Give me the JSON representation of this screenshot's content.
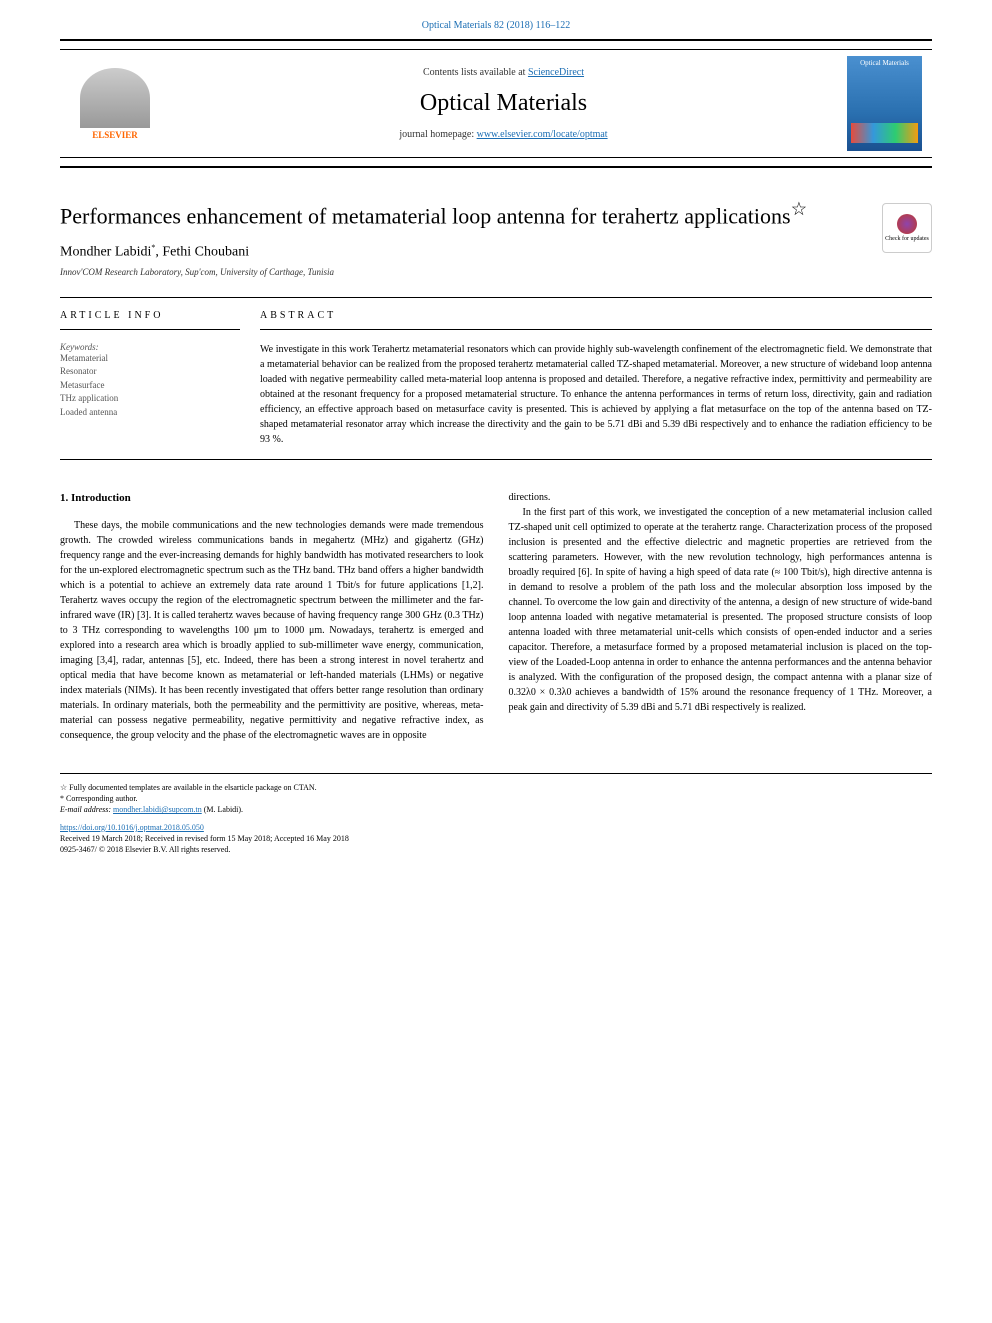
{
  "header": {
    "citation": "Optical Materials 82 (2018) 116–122",
    "contents_text": "Contents lists available at ",
    "contents_link": "ScienceDirect",
    "journal_name": "Optical Materials",
    "homepage_text": "journal homepage: ",
    "homepage_link": "www.elsevier.com/locate/optmat",
    "elsevier_label": "ELSEVIER",
    "cover_text": "Optical Materials"
  },
  "article": {
    "title": "Performances enhancement of metamaterial loop antenna for terahertz applications",
    "title_note": "☆",
    "authors": "Mondher Labidi",
    "author_marker": "*",
    "authors2": ", Fethi Choubani",
    "affiliation": "Innov'COM Research Laboratory, Sup'com, University of Carthage, Tunisia",
    "check_updates_label": "Check for updates"
  },
  "info": {
    "header": "ARTICLE INFO",
    "keywords_label": "Keywords:",
    "keywords": [
      "Metamaterial",
      "Resonator",
      "Metasurface",
      "THz application",
      "Loaded antenna"
    ]
  },
  "abstract": {
    "header": "ABSTRACT",
    "text": "We investigate in this work Terahertz metamaterial resonators which can provide highly sub-wavelength confinement of the electromagnetic field. We demonstrate that a metamaterial behavior can be realized from the proposed terahertz metamaterial called TZ-shaped metamaterial. Moreover, a new structure of wideband loop antenna loaded with negative permeability called meta-material loop antenna is proposed and detailed. Therefore, a negative refractive index, permittivity and permeability are obtained at the resonant frequency for a proposed metamaterial structure. To enhance the antenna performances in terms of return loss, directivity, gain and radiation efficiency, an effective approach based on metasurface cavity is presented. This is achieved by applying a flat metasurface on the top of the antenna based on TZ-shaped metamaterial resonator array which increase the directivity and the gain to be 5.71 dBi and 5.39 dBi respectively and to enhance the radiation efficiency to be 93 %."
  },
  "introduction": {
    "heading": "1. Introduction",
    "col1_p1": "These days, the mobile communications and the new technologies demands were made tremendous growth. The crowded wireless communications bands in megahertz (MHz) and gigahertz (GHz) frequency range and the ever-increasing demands for highly bandwidth has motivated researchers to look for the un-explored electromagnetic spectrum such as the THz band. THz band offers a higher bandwidth which is a potential to achieve an extremely data rate around 1 Tbit/s for future applications [1,2]. Terahertz waves occupy the region of the electromagnetic spectrum between the millimeter and the far-infrared wave (IR) [3]. It is called terahertz waves because of having frequency range 300 GHz (0.3 THz) to 3 THz corresponding to wavelengths 100 μm to 1000 μm. Nowadays, terahertz is emerged and explored into a research area which is broadly applied to sub-millimeter wave energy, communication, imaging [3,4], radar, antennas [5], etc. Indeed, there has been a strong interest in novel terahertz and optical media that have become known as metamaterial or left-handed materials (LHMs) or negative index materials (NIMs). It has been recently investigated that offers better range resolution than ordinary materials. In ordinary materials, both the permeability and the permittivity are positive, whereas, meta-material can possess negative permeability, negative permittivity and negative refractive index, as consequence, the group velocity and the phase of the electromagnetic waves are in opposite",
    "col2_p1_start": "directions.",
    "col2_p2": "In the first part of this work, we investigated the conception of a new metamaterial inclusion called TZ-shaped unit cell optimized to operate at the terahertz range. Characterization process of the proposed inclusion is presented and the effective dielectric and magnetic properties are retrieved from the scattering parameters. However, with the new revolution technology, high performances antenna is broadly required [6]. In spite of having a high speed of data rate (≈ 100 Tbit/s), high directive antenna is in demand to resolve a problem of the path loss and the molecular absorption loss imposed by the channel. To overcome the low gain and directivity of the antenna, a design of new structure of wide-band loop antenna loaded with negative metamaterial is presented. The proposed structure consists of loop antenna loaded with three metamaterial unit-cells which consists of open-ended inductor and a series capacitor. Therefore, a metasurface formed by a proposed metamaterial inclusion is placed on the top-view of the Loaded-Loop antenna in order to enhance the antenna performances and the antenna behavior is analyzed. With the configuration of the proposed design, the compact antenna with a planar size of 0.32λ0 × 0.3λ0 achieves a bandwidth of 15% around the resonance frequency of 1 THz. Moreover, a peak gain and directivity of 5.39 dBi and 5.71 dBi respectively is realized."
  },
  "footer": {
    "note": "☆ Fully documented templates are available in the elsarticle package on CTAN.",
    "corresponding": "* Corresponding author.",
    "email_label": "E-mail address: ",
    "email": "mondher.labidi@supcom.tn",
    "email_suffix": " (M. Labidi).",
    "doi": "https://doi.org/10.1016/j.optmat.2018.05.050",
    "received": "Received 19 March 2018; Received in revised form 15 May 2018; Accepted 16 May 2018",
    "copyright": "0925-3467/ © 2018 Elsevier B.V. All rights reserved."
  }
}
